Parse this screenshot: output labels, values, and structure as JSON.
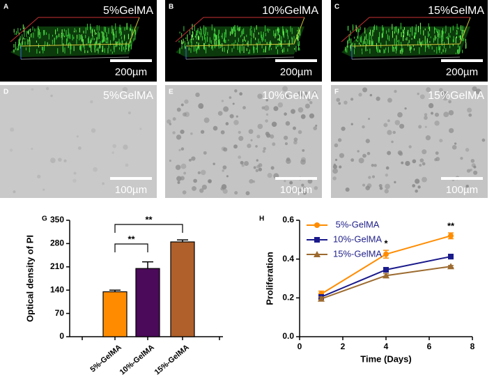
{
  "panels": [
    {
      "label": "A",
      "title": "5%GelMA",
      "scalebar": "200µm"
    },
    {
      "label": "B",
      "title": "10%GelMA",
      "scalebar": "200µm"
    },
    {
      "label": "C",
      "title": "15%GelMA",
      "scalebar": "200µm"
    },
    {
      "label": "D",
      "title": "5%GelMA",
      "scalebar": "100µm"
    },
    {
      "label": "E",
      "title": "10%GelMA",
      "scalebar": "100µm"
    },
    {
      "label": "F",
      "title": "15%GelMA",
      "scalebar": "100µm"
    }
  ],
  "chart_data": [
    {
      "type": "bar",
      "panel_label": "G",
      "ylabel": "Optical density of PI",
      "categories": [
        "5%-GelMA",
        "10%-GelMA",
        "15%-GelMA"
      ],
      "values": [
        135,
        205,
        285
      ],
      "errors": [
        5,
        20,
        6
      ],
      "colors": [
        "#ff8c00",
        "#4b0a5a",
        "#b0602a"
      ],
      "ylim": [
        0,
        350
      ],
      "yticks": [
        0,
        70,
        140,
        210,
        280,
        350
      ],
      "annotations": [
        {
          "text": "**"
        },
        {
          "text": "**"
        }
      ]
    },
    {
      "type": "line",
      "panel_label": "H",
      "xlabel": "Time (Days)",
      "ylabel": "Proliferation",
      "x": [
        1,
        4,
        7
      ],
      "series": [
        {
          "name": " 5%-GelMA",
          "color": "#ff8c00",
          "marker": "circle",
          "values": [
            0.22,
            0.425,
            0.52
          ],
          "errors": [
            0.015,
            0.02,
            0.015
          ]
        },
        {
          "name": "10%-GelMA",
          "color": "#1a1a8c",
          "marker": "square",
          "values": [
            0.205,
            0.345,
            0.413
          ],
          "errors": [
            0.01,
            0.01,
            0.012
          ]
        },
        {
          "name": "15%-GelMA",
          "color": "#9c6b30",
          "marker": "triangle",
          "values": [
            0.195,
            0.315,
            0.362
          ],
          "errors": [
            0.01,
            0.01,
            0.005
          ]
        }
      ],
      "xlim": [
        0,
        8
      ],
      "xticks": [
        0,
        2,
        4,
        6,
        8
      ],
      "ylim": [
        0,
        0.6
      ],
      "yticks": [
        {
          "value": 0,
          "label": "0.0"
        },
        {
          "value": 0.2,
          "label": "0.2"
        },
        {
          "value": 0.4,
          "label": "0.4"
        },
        {
          "value": 0.6,
          "label": "0.6"
        }
      ],
      "legend": "upper left",
      "annotations": [
        {
          "text": "*",
          "x": 4
        },
        {
          "text": "**",
          "x": 7
        }
      ]
    }
  ]
}
